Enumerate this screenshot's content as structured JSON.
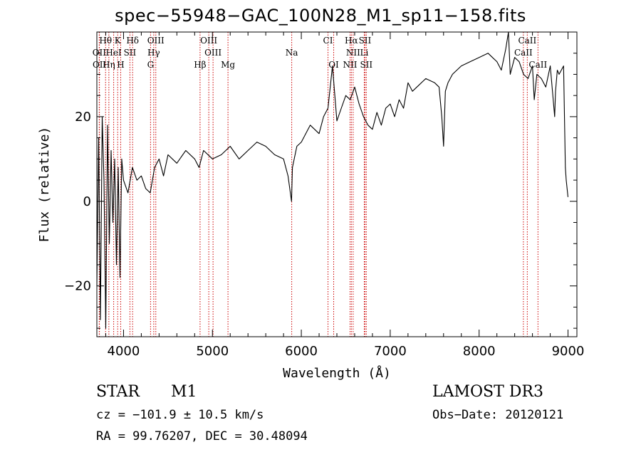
{
  "chart_data": {
    "type": "line",
    "title": "spec−55948−GAC_100N28_M1_sp11−158.fits",
    "xlabel": "Wavelength (Å)",
    "ylabel": "Flux (relative)",
    "xlim": [
      3700,
      9100
    ],
    "ylim": [
      -32,
      40
    ],
    "xticks": [
      4000,
      5000,
      6000,
      7000,
      8000,
      9000
    ],
    "xtick_labels": [
      "4000",
      "5000",
      "6000",
      "7000",
      "8000",
      "9000"
    ],
    "yticks": [
      -20,
      0,
      20
    ],
    "ytick_labels": [
      "−20",
      "0",
      "20"
    ],
    "series": [
      {
        "name": "flux",
        "color": "#000000",
        "x": [
          3700,
          3720,
          3740,
          3760,
          3780,
          3800,
          3820,
          3840,
          3860,
          3880,
          3900,
          3920,
          3940,
          3960,
          3980,
          4000,
          4050,
          4100,
          4150,
          4200,
          4250,
          4300,
          4350,
          4400,
          4450,
          4500,
          4600,
          4700,
          4800,
          4850,
          4900,
          5000,
          5100,
          5200,
          5300,
          5400,
          5500,
          5600,
          5700,
          5800,
          5850,
          5890,
          5900,
          5920,
          5950,
          6000,
          6100,
          6200,
          6250,
          6300,
          6330,
          6350,
          6400,
          6450,
          6500,
          6550,
          6600,
          6650,
          6700,
          6750,
          6800,
          6850,
          6900,
          6950,
          7000,
          7050,
          7100,
          7150,
          7200,
          7250,
          7300,
          7400,
          7500,
          7550,
          7580,
          7600,
          7620,
          7650,
          7700,
          7800,
          7900,
          8000,
          8100,
          8150,
          8200,
          8250,
          8300,
          8330,
          8350,
          8400,
          8450,
          8500,
          8550,
          8600,
          8620,
          8650,
          8700,
          8750,
          8800,
          8850,
          8860,
          8880,
          8900,
          8950,
          8970,
          8980,
          9000
        ],
        "values": [
          -20,
          15,
          -28,
          20,
          5,
          -30,
          18,
          -10,
          12,
          -5,
          10,
          -15,
          8,
          -18,
          10,
          5,
          2,
          8,
          5,
          6,
          3,
          2,
          8,
          10,
          6,
          11,
          9,
          12,
          10,
          8,
          12,
          10,
          11,
          13,
          10,
          12,
          14,
          13,
          11,
          10,
          6,
          0,
          8,
          10,
          13,
          14,
          18,
          16,
          20,
          22,
          28,
          32,
          19,
          22,
          25,
          24,
          27,
          23,
          20,
          18,
          17,
          21,
          18,
          22,
          23,
          20,
          24,
          22,
          28,
          26,
          27,
          29,
          28,
          27,
          20,
          13,
          26,
          28,
          30,
          32,
          33,
          34,
          35,
          34,
          33,
          31,
          36,
          40,
          30,
          34,
          33,
          30,
          29,
          32,
          24,
          30,
          29,
          27,
          32,
          20,
          26,
          31,
          30,
          32,
          8,
          5,
          1
        ]
      }
    ],
    "lines": [
      {
        "label": "Hθ",
        "wavelength": 3798
      },
      {
        "label": "K",
        "wavelength": 3934
      },
      {
        "label": "Hδ",
        "wavelength": 4102
      },
      {
        "label": "OIII",
        "wavelength": 4363
      },
      {
        "label": "OIII",
        "wavelength": 4959
      },
      {
        "label": "CI",
        "wavelength": 6300
      },
      {
        "label": "Hα",
        "wavelength": 6563
      },
      {
        "label": "SII",
        "wavelength": 6716
      },
      {
        "label": "CaII",
        "wavelength": 8542
      },
      {
        "label": "OII",
        "wavelength": 3727
      },
      {
        "label": "HeI",
        "wavelength": 3889
      },
      {
        "label": "SII",
        "wavelength": 4072
      },
      {
        "label": "Hγ",
        "wavelength": 4340
      },
      {
        "label": "OIII",
        "wavelength": 5007
      },
      {
        "label": "Na",
        "wavelength": 5892
      },
      {
        "label": "NII",
        "wavelength": 6583
      },
      {
        "label": "Li",
        "wavelength": 6708
      },
      {
        "label": "CaII",
        "wavelength": 8498
      },
      {
        "label": "OII",
        "wavelength": 3729
      },
      {
        "label": "Hη",
        "wavelength": 3835
      },
      {
        "label": "H",
        "wavelength": 3968
      },
      {
        "label": "G",
        "wavelength": 4304
      },
      {
        "label": "Hβ",
        "wavelength": 4861
      },
      {
        "label": "Mg",
        "wavelength": 5175
      },
      {
        "label": "OI",
        "wavelength": 6364
      },
      {
        "label": "NII",
        "wavelength": 6548
      },
      {
        "label": "SII",
        "wavelength": 6731
      },
      {
        "label": "CaII",
        "wavelength": 8662
      }
    ]
  },
  "info": {
    "class": "STAR",
    "subclass": "M1",
    "survey": "LAMOST DR3",
    "cz": "cz = −101.9 ± 10.5 km/s",
    "obs_date": "Obs−Date: 20120121",
    "coords": "RA =  99.76207, DEC =  30.48094"
  }
}
